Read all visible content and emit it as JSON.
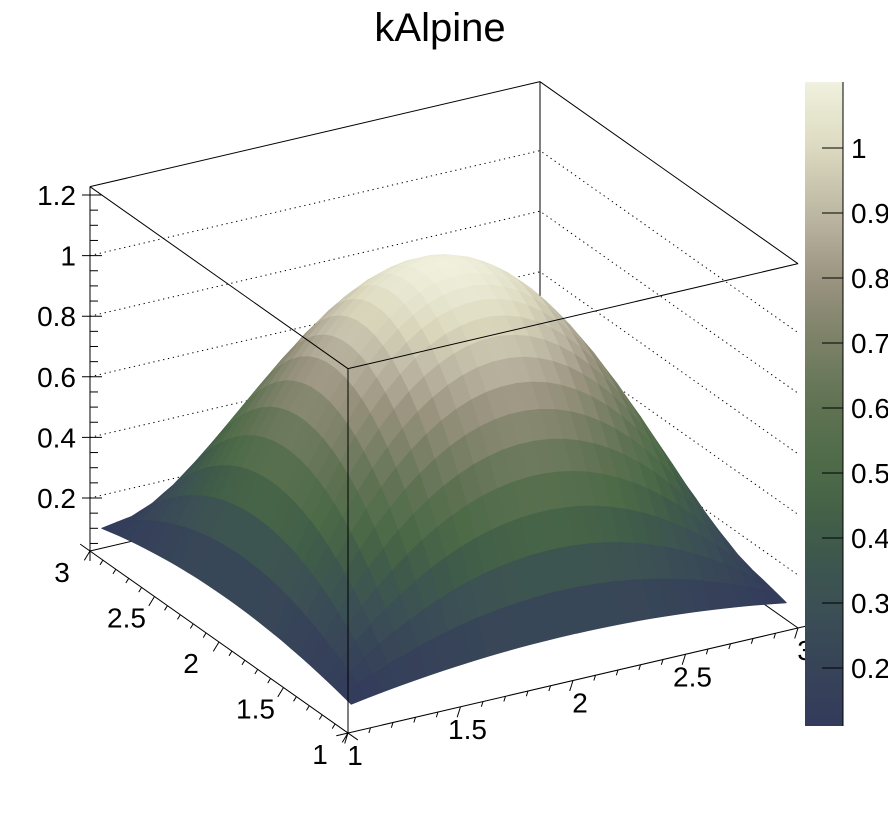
{
  "title": "kAlpine",
  "background": "#ffffff",
  "axis_color": "#000000",
  "chart_data": {
    "type": "surface",
    "title": "kAlpine",
    "function": "z = 0.1 + (1-(x-2)^2)*(1-(y-2)^2)",
    "x_range": [
      1,
      3
    ],
    "y_range": [
      1,
      3
    ],
    "z_value_range": [
      0.1,
      1.1
    ],
    "surface_grid_n": 30,
    "grid": "dotted z-level lines on back walls",
    "legend_position": "right color scale bar",
    "x_axis": {
      "tick_values": [
        1,
        1.5,
        2,
        2.5,
        3
      ],
      "tick_labels": [
        "1",
        "1.5",
        "2",
        "2.5",
        "3"
      ],
      "minor_tick_step": 0.1
    },
    "y_axis": {
      "tick_values": [
        3,
        2.5,
        2,
        1.5,
        1
      ],
      "tick_labels": [
        "3",
        "2.5",
        "2",
        "1.5",
        "1"
      ],
      "minor_tick_step": 0.1
    },
    "z_axis": {
      "tick_values": [
        0.2,
        0.4,
        0.6,
        0.8,
        1,
        1.2
      ],
      "tick_labels": [
        "0.2",
        "0.4",
        "0.6",
        "0.8",
        "1",
        "1.2"
      ],
      "minor_tick_step": 0.05,
      "grid_values": [
        0.2,
        0.4,
        0.6,
        0.8,
        1
      ]
    },
    "palette": {
      "name": "kAlpine",
      "stops": [
        {
          "v": 0.1,
          "c": "#323a5c"
        },
        {
          "v": 0.2,
          "c": "#374458"
        },
        {
          "v": 0.3,
          "c": "#3b5055"
        },
        {
          "v": 0.4,
          "c": "#3f5b4a"
        },
        {
          "v": 0.5,
          "c": "#4c6a47"
        },
        {
          "v": 0.6,
          "c": "#5e7252"
        },
        {
          "v": 0.7,
          "c": "#7a8066"
        },
        {
          "v": 0.8,
          "c": "#9b9480"
        },
        {
          "v": 0.9,
          "c": "#bdb7a3"
        },
        {
          "v": 1.0,
          "c": "#dcdabf"
        },
        {
          "v": 1.1,
          "c": "#f0f1de"
        }
      ]
    },
    "colorbar": {
      "min": 0.1,
      "max": 1.1,
      "tick_values": [
        1,
        0.9,
        0.8,
        0.7,
        0.6,
        0.5,
        0.4,
        0.3,
        0.2
      ],
      "tick_labels": [
        "1",
        "0.9",
        "0.8",
        "0.7",
        "0.6",
        "0.5",
        "0.4",
        "0.3",
        "0.2"
      ]
    }
  }
}
